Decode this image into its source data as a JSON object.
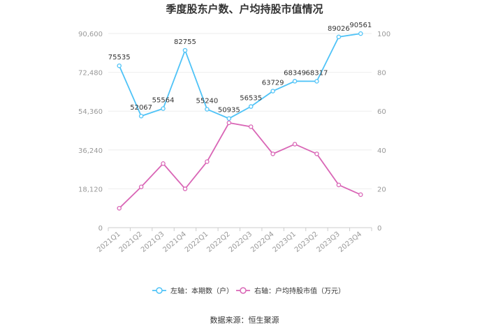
{
  "chart_data": {
    "type": "line",
    "title": "季度股东户数、户均持股市值情况",
    "categories": [
      "2021Q1",
      "2021Q2",
      "2021Q3",
      "2021Q4",
      "2022Q1",
      "2022Q2",
      "2022Q3",
      "2022Q4",
      "2023Q1",
      "2023Q2",
      "2023Q3",
      "2023Q4"
    ],
    "y_left": {
      "ticks": [
        "0",
        "18,120",
        "36,240",
        "54,360",
        "72,480",
        "90,600"
      ],
      "range": [
        0,
        90600
      ]
    },
    "y_right": {
      "ticks": [
        "0",
        "20",
        "40",
        "60",
        "80",
        "100"
      ],
      "range": [
        0,
        100
      ]
    },
    "series": [
      {
        "name": "左轴：本期数（户）",
        "axis": "left",
        "color": "#4FC3F7",
        "values": [
          75535,
          52067,
          55564,
          82755,
          55240,
          50935,
          56535,
          63729,
          68349,
          68317,
          89026,
          90561
        ],
        "labels": [
          "75535",
          "52067",
          "55564",
          "82755",
          "55240",
          "50935",
          "56535",
          "63729",
          "68349",
          "68317",
          "89026",
          "90561"
        ]
      },
      {
        "name": "右轴：户均持股市值（万元）",
        "axis": "right",
        "color": "#D966B6",
        "values": [
          10,
          21,
          33,
          20,
          34,
          54,
          52,
          38,
          43,
          38,
          22,
          17
        ]
      }
    ]
  },
  "source": "数据来源：恒生聚源"
}
